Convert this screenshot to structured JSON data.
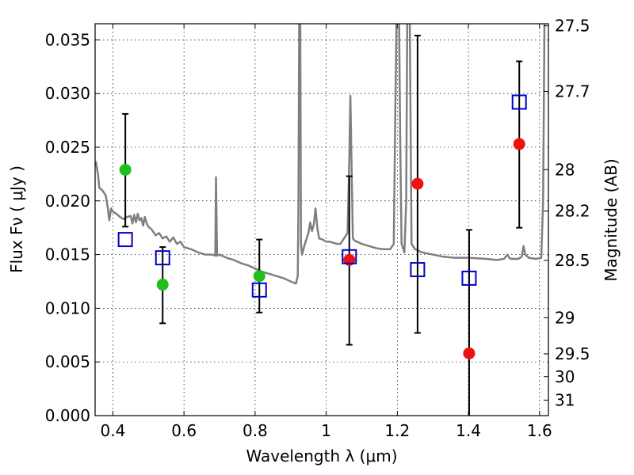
{
  "chart_data": {
    "type": "scatter",
    "title": "",
    "xlabel": "Wavelength  λ (μm)",
    "ylabel_left": "Flux  Fν  ( μJy )",
    "ylabel_right": "Magnitude (AB)",
    "xlim": [
      0.35,
      1.625
    ],
    "ylim": [
      0.0,
      0.0365
    ],
    "grid": true,
    "x_ticks": [
      0.4,
      0.6,
      0.8,
      1.0,
      1.2,
      1.4,
      1.6
    ],
    "x_tick_labels": [
      "0.4",
      "0.6",
      "0.8",
      "1",
      "1.2",
      "1.4",
      "1.6"
    ],
    "y_ticks": [
      0.0,
      0.005,
      0.01,
      0.015,
      0.02,
      0.025,
      0.03,
      0.035
    ],
    "y_tick_labels": [
      "0.000",
      "0.005",
      "0.010",
      "0.015",
      "0.020",
      "0.025",
      "0.030",
      "0.035"
    ],
    "right_ticks": [
      {
        "label": "27.5",
        "mag": 27.5
      },
      {
        "label": "27.7",
        "mag": 27.7
      },
      {
        "label": "28",
        "mag": 28.0
      },
      {
        "label": "28.2",
        "mag": 28.2
      },
      {
        "label": "28.5",
        "mag": 28.5
      },
      {
        "label": "29",
        "mag": 29.0
      },
      {
        "label": "29.5",
        "mag": 29.5
      },
      {
        "label": "30",
        "mag": 30.0
      },
      {
        "label": "31",
        "mag": 31.0
      }
    ],
    "colors": {
      "template": "#7f7f7f",
      "green": "#1fbf1f",
      "red": "#ee1111",
      "square": "#0000cc",
      "errorbar": "#000000"
    },
    "template_spectrum": [
      [
        0.352,
        0.0237
      ],
      [
        0.358,
        0.0225
      ],
      [
        0.362,
        0.0212
      ],
      [
        0.37,
        0.021
      ],
      [
        0.38,
        0.0205
      ],
      [
        0.385,
        0.0195
      ],
      [
        0.39,
        0.0182
      ],
      [
        0.395,
        0.0193
      ],
      [
        0.4,
        0.019
      ],
      [
        0.41,
        0.0188
      ],
      [
        0.42,
        0.0185
      ],
      [
        0.43,
        0.0183
      ],
      [
        0.44,
        0.0185
      ],
      [
        0.45,
        0.0186
      ],
      [
        0.455,
        0.0179
      ],
      [
        0.46,
        0.0187
      ],
      [
        0.465,
        0.018
      ],
      [
        0.47,
        0.0188
      ],
      [
        0.475,
        0.0182
      ],
      [
        0.48,
        0.0184
      ],
      [
        0.485,
        0.0177
      ],
      [
        0.49,
        0.0185
      ],
      [
        0.495,
        0.0179
      ],
      [
        0.5,
        0.0176
      ],
      [
        0.51,
        0.0173
      ],
      [
        0.52,
        0.0168
      ],
      [
        0.53,
        0.017
      ],
      [
        0.54,
        0.0165
      ],
      [
        0.55,
        0.0167
      ],
      [
        0.56,
        0.0162
      ],
      [
        0.57,
        0.0166
      ],
      [
        0.58,
        0.016
      ],
      [
        0.59,
        0.0162
      ],
      [
        0.6,
        0.0157
      ],
      [
        0.62,
        0.0155
      ],
      [
        0.64,
        0.0152
      ],
      [
        0.66,
        0.015
      ],
      [
        0.68,
        0.015
      ],
      [
        0.688,
        0.0149
      ],
      [
        0.69,
        0.0222
      ],
      [
        0.693,
        0.0149
      ],
      [
        0.7,
        0.015
      ],
      [
        0.72,
        0.0147
      ],
      [
        0.74,
        0.0145
      ],
      [
        0.76,
        0.0142
      ],
      [
        0.78,
        0.014
      ],
      [
        0.8,
        0.0137
      ],
      [
        0.82,
        0.0134
      ],
      [
        0.84,
        0.0132
      ],
      [
        0.86,
        0.013
      ],
      [
        0.88,
        0.0128
      ],
      [
        0.9,
        0.0125
      ],
      [
        0.915,
        0.0123
      ],
      [
        0.92,
        0.013
      ],
      [
        0.922,
        0.02
      ],
      [
        0.924,
        0.037
      ],
      [
        0.927,
        0.037
      ],
      [
        0.929,
        0.016
      ],
      [
        0.932,
        0.015
      ],
      [
        0.94,
        0.016
      ],
      [
        0.95,
        0.017
      ],
      [
        0.955,
        0.018
      ],
      [
        0.96,
        0.0172
      ],
      [
        0.965,
        0.0178
      ],
      [
        0.97,
        0.0193
      ],
      [
        0.975,
        0.0175
      ],
      [
        0.98,
        0.0165
      ],
      [
        0.99,
        0.0164
      ],
      [
        1.0,
        0.0162
      ],
      [
        1.01,
        0.0162
      ],
      [
        1.02,
        0.0161
      ],
      [
        1.03,
        0.016
      ],
      [
        1.04,
        0.016
      ],
      [
        1.05,
        0.0165
      ],
      [
        1.06,
        0.017
      ],
      [
        1.065,
        0.024
      ],
      [
        1.068,
        0.0298
      ],
      [
        1.071,
        0.024
      ],
      [
        1.075,
        0.0165
      ],
      [
        1.08,
        0.0163
      ],
      [
        1.1,
        0.016
      ],
      [
        1.12,
        0.0158
      ],
      [
        1.14,
        0.0156
      ],
      [
        1.16,
        0.0155
      ],
      [
        1.18,
        0.0155
      ],
      [
        1.19,
        0.016
      ],
      [
        1.195,
        0.03
      ],
      [
        1.198,
        0.037
      ],
      [
        1.205,
        0.037
      ],
      [
        1.208,
        0.026
      ],
      [
        1.212,
        0.016
      ],
      [
        1.22,
        0.0152
      ],
      [
        1.225,
        0.02
      ],
      [
        1.228,
        0.037
      ],
      [
        1.235,
        0.037
      ],
      [
        1.24,
        0.016
      ],
      [
        1.25,
        0.0155
      ],
      [
        1.27,
        0.0152
      ],
      [
        1.3,
        0.015
      ],
      [
        1.33,
        0.0148
      ],
      [
        1.36,
        0.0147
      ],
      [
        1.4,
        0.0147
      ],
      [
        1.45,
        0.0146
      ],
      [
        1.48,
        0.0145
      ],
      [
        1.5,
        0.0146
      ],
      [
        1.51,
        0.015
      ],
      [
        1.515,
        0.0147
      ],
      [
        1.52,
        0.0146
      ],
      [
        1.54,
        0.0146
      ],
      [
        1.55,
        0.0148
      ],
      [
        1.555,
        0.0158
      ],
      [
        1.56,
        0.015
      ],
      [
        1.57,
        0.0147
      ],
      [
        1.59,
        0.0146
      ],
      [
        1.605,
        0.0147
      ],
      [
        1.61,
        0.02
      ],
      [
        1.614,
        0.037
      ]
    ],
    "series": [
      {
        "marker": "circle",
        "color": "green",
        "points": [
          {
            "x": 0.435,
            "y": 0.0229,
            "lo": 0.0176,
            "hi": 0.0281
          },
          {
            "x": 0.54,
            "y": 0.0122
          },
          {
            "x": 0.812,
            "y": 0.013
          }
        ]
      },
      {
        "marker": "circle",
        "color": "red",
        "points": [
          {
            "x": 1.065,
            "y": 0.0145
          },
          {
            "x": 1.257,
            "y": 0.0216
          },
          {
            "x": 1.402,
            "y": 0.0058
          },
          {
            "x": 1.543,
            "y": 0.0253
          }
        ]
      },
      {
        "marker": "square",
        "color": "square",
        "points": [
          {
            "x": 0.435,
            "y": 0.0164
          },
          {
            "x": 0.54,
            "y": 0.0147,
            "lo": 0.0086,
            "hi": 0.0157
          },
          {
            "x": 0.812,
            "y": 0.0117,
            "lo": 0.0096,
            "hi": 0.0164
          },
          {
            "x": 1.065,
            "y": 0.0148,
            "lo": 0.0066,
            "hi": 0.0223
          },
          {
            "x": 1.257,
            "y": 0.0136,
            "lo": 0.0077,
            "hi": 0.0354
          },
          {
            "x": 1.402,
            "y": 0.0128,
            "lo": -0.001,
            "hi": 0.0173
          },
          {
            "x": 1.543,
            "y": 0.0292,
            "lo": 0.0175,
            "hi": 0.033
          }
        ]
      }
    ]
  }
}
